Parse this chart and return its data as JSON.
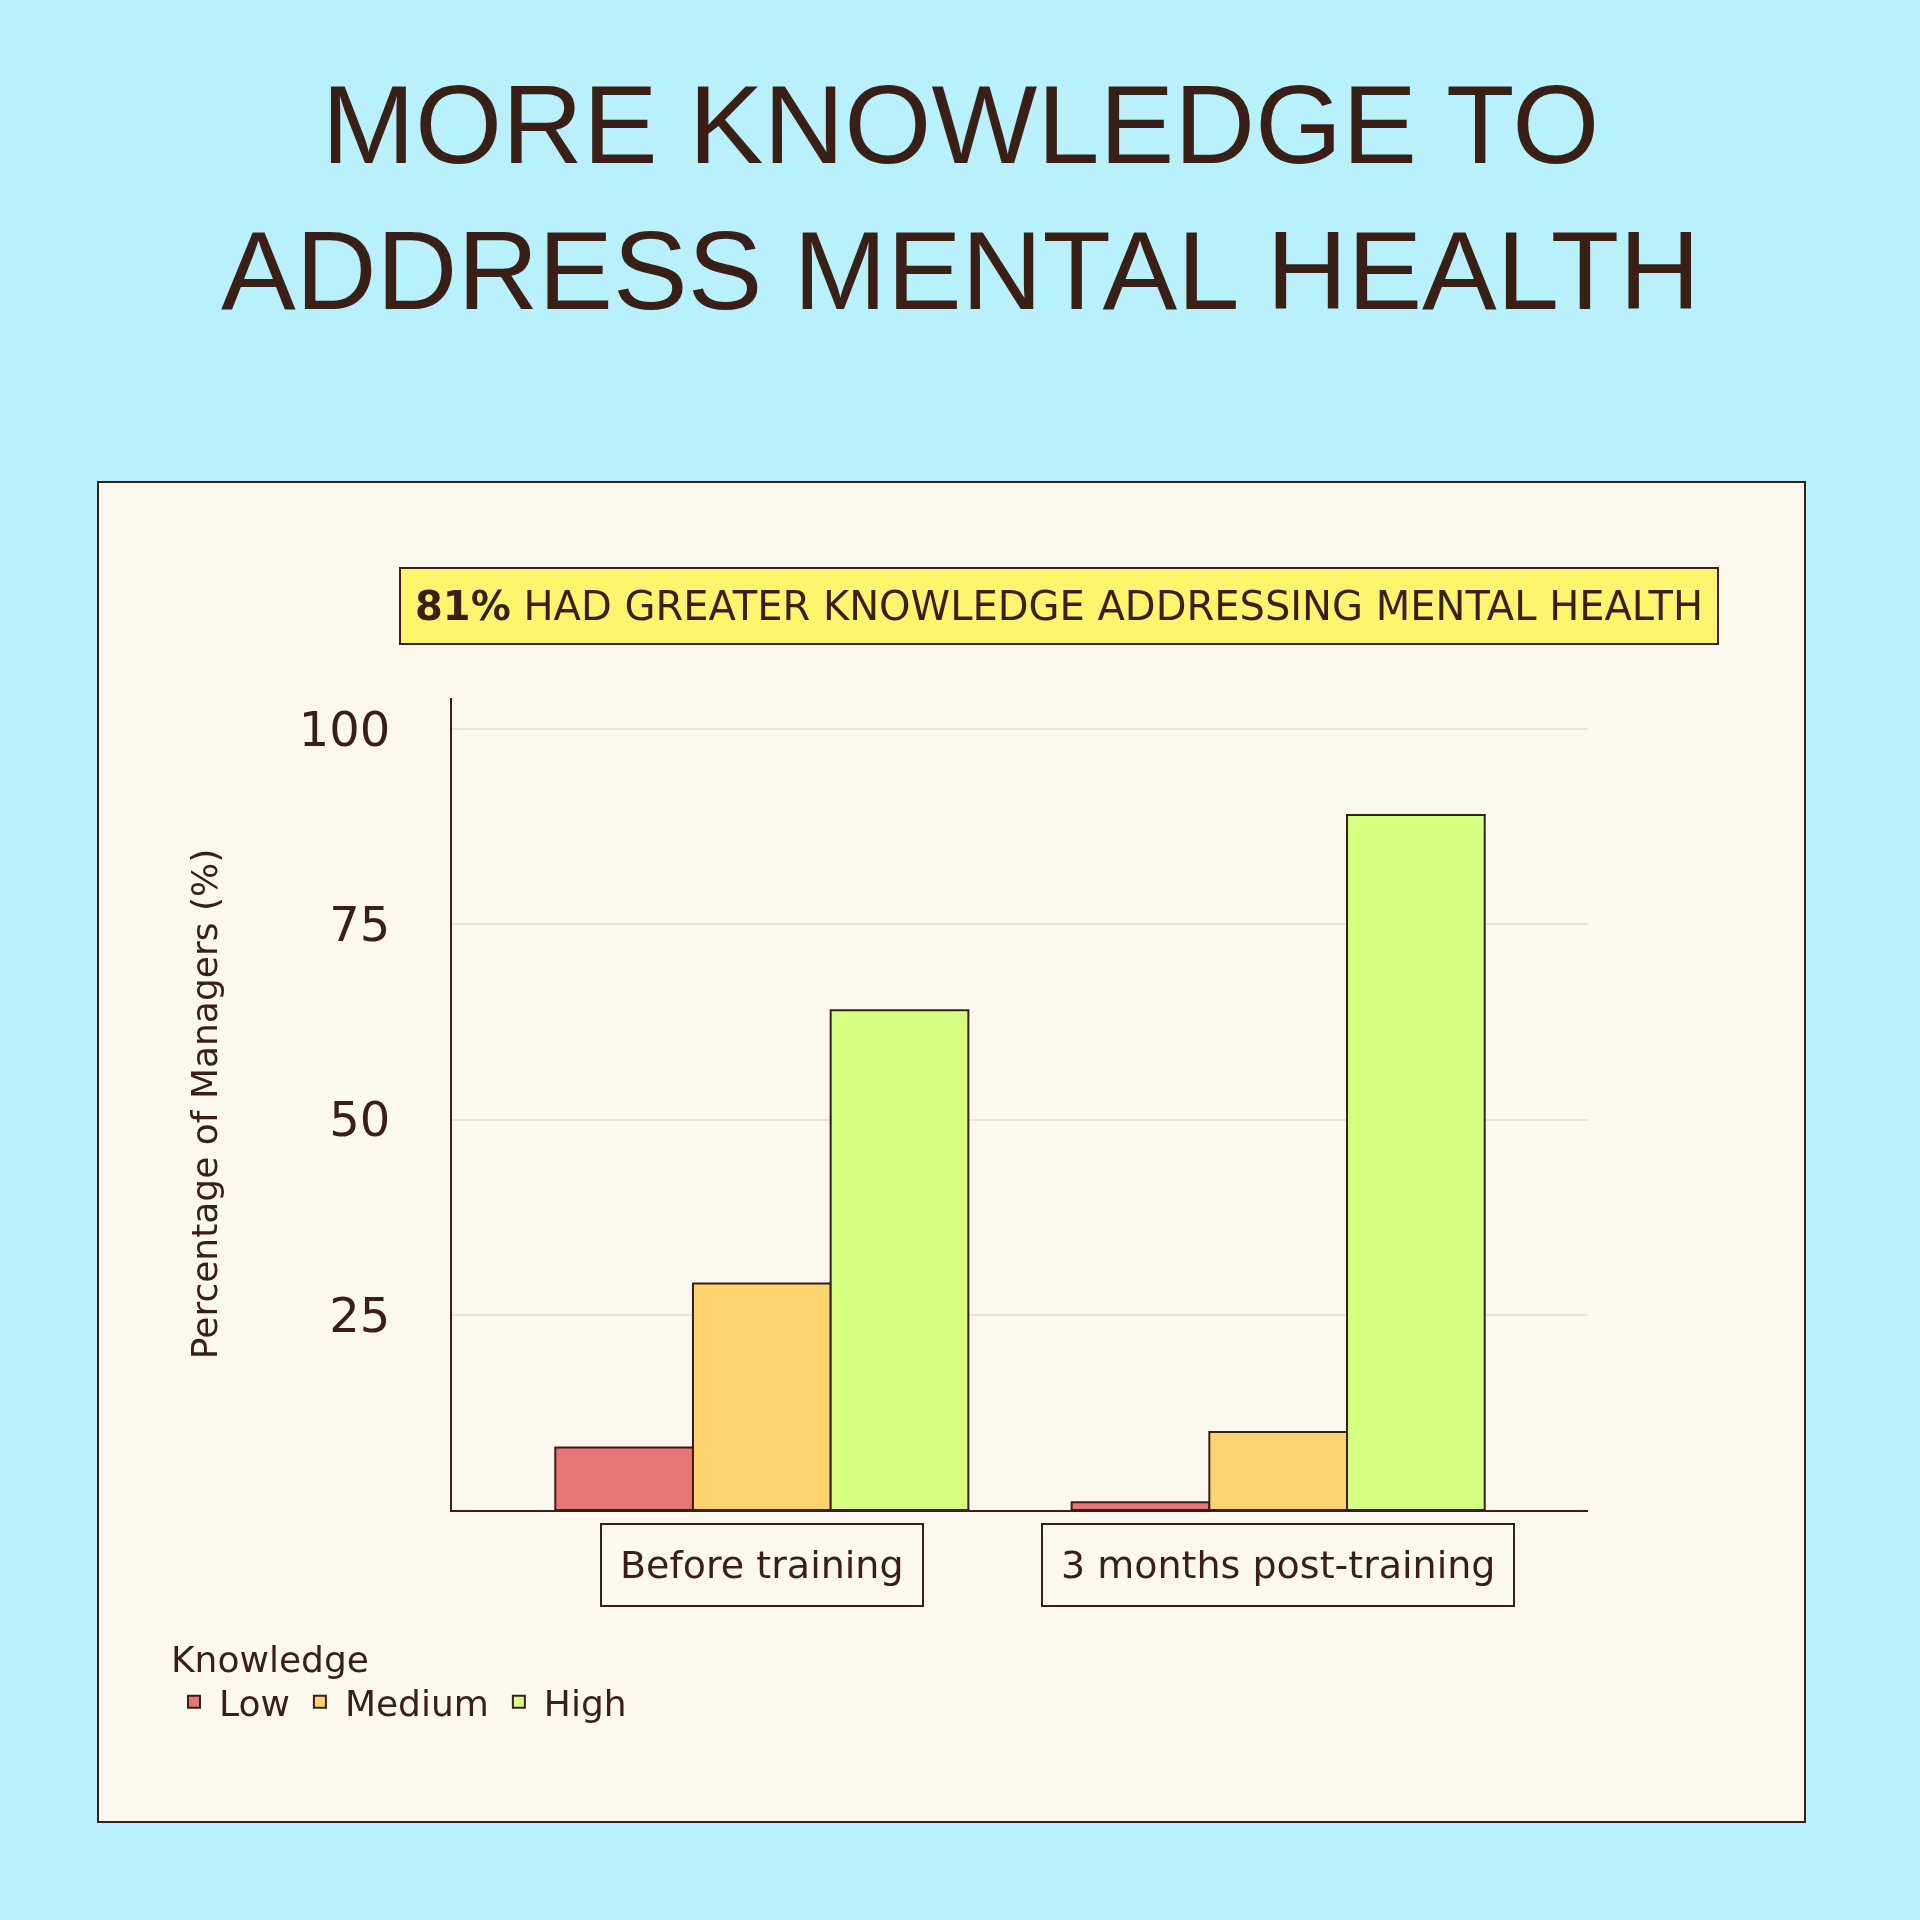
{
  "chart_data": {
    "type": "bar",
    "title": "MORE KNOWLEDGE TO\nADDRESS MENTAL HEALTH",
    "subtitle": "81% HAD GREATER KNOWLEDGE ADDRESSING MENTAL HEALTH",
    "ylabel": "Percentage of Managers (%)",
    "legend_title": "Knowledge",
    "categories": [
      "Before training",
      "3 months post-training"
    ],
    "series": [
      {
        "name": "Low",
        "color": "#e87575",
        "values": [
          8,
          1
        ]
      },
      {
        "name": "Medium",
        "color": "#ffd36e",
        "values": [
          29,
          10
        ]
      },
      {
        "name": "High",
        "color": "#d4ff7f",
        "values": [
          64,
          89
        ]
      }
    ],
    "ylim": [
      0,
      104
    ],
    "yticks": [
      25,
      50,
      75,
      100
    ],
    "grid": "y",
    "legend": "bottom left"
  }
}
